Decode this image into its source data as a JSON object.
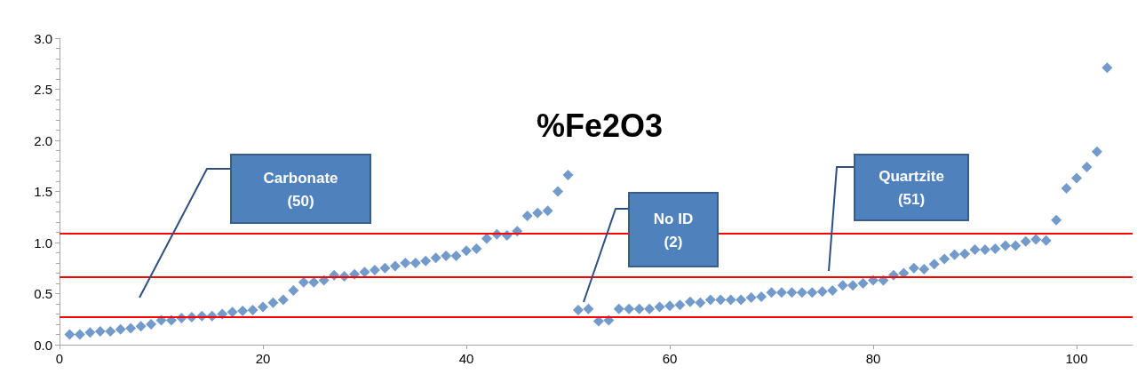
{
  "chart_data": {
    "type": "scatter",
    "title": "%Fe2O3",
    "x": [
      1,
      2,
      3,
      4,
      5,
      6,
      7,
      8,
      9,
      10,
      11,
      12,
      13,
      14,
      15,
      16,
      17,
      18,
      19,
      20,
      21,
      22,
      23,
      24,
      25,
      26,
      27,
      28,
      29,
      30,
      31,
      32,
      33,
      34,
      35,
      36,
      37,
      38,
      39,
      40,
      41,
      42,
      43,
      44,
      45,
      46,
      47,
      48,
      49,
      50,
      51,
      52,
      53,
      54,
      55,
      56,
      57,
      58,
      59,
      60,
      61,
      62,
      63,
      64,
      65,
      66,
      67,
      68,
      69,
      70,
      71,
      72,
      73,
      74,
      75,
      76,
      77,
      78,
      79,
      80,
      81,
      82,
      83,
      84,
      85,
      86,
      87,
      88,
      89,
      90,
      91,
      92,
      93,
      94,
      95,
      96,
      97,
      98,
      99,
      100,
      101,
      102,
      103
    ],
    "values": [
      0.1,
      0.1,
      0.12,
      0.13,
      0.13,
      0.15,
      0.16,
      0.18,
      0.2,
      0.24,
      0.24,
      0.26,
      0.27,
      0.28,
      0.28,
      0.3,
      0.32,
      0.33,
      0.34,
      0.37,
      0.41,
      0.44,
      0.53,
      0.61,
      0.61,
      0.63,
      0.68,
      0.67,
      0.69,
      0.71,
      0.73,
      0.75,
      0.77,
      0.8,
      0.8,
      0.82,
      0.85,
      0.87,
      0.87,
      0.92,
      0.94,
      1.04,
      1.08,
      1.07,
      1.11,
      1.26,
      1.29,
      1.31,
      1.5,
      1.66,
      0.34,
      0.35,
      0.23,
      0.24,
      0.35,
      0.35,
      0.35,
      0.35,
      0.37,
      0.38,
      0.39,
      0.42,
      0.41,
      0.44,
      0.44,
      0.44,
      0.44,
      0.46,
      0.47,
      0.51,
      0.51,
      0.51,
      0.51,
      0.51,
      0.52,
      0.53,
      0.58,
      0.58,
      0.6,
      0.63,
      0.63,
      0.68,
      0.7,
      0.75,
      0.74,
      0.79,
      0.84,
      0.88,
      0.89,
      0.93,
      0.93,
      0.94,
      0.97,
      0.97,
      1.01,
      1.03,
      1.02,
      1.22,
      1.53,
      1.63,
      1.74,
      1.89,
      2.71
    ],
    "color": "#4f81bd",
    "marker": "diamond",
    "xlim": [
      0,
      105.5
    ],
    "xticks": [
      0,
      20,
      40,
      60,
      80,
      100
    ],
    "ylim": [
      0,
      3
    ],
    "yticks": [
      {
        "value": 0,
        "label": "0.0"
      },
      {
        "value": 0.5,
        "label": "0.5"
      },
      {
        "value": 1,
        "label": "1.0"
      },
      {
        "value": 1.5,
        "label": "1.5"
      },
      {
        "value": 2,
        "label": "2.0"
      },
      {
        "value": 2.5,
        "label": "2.5"
      },
      {
        "value": 3,
        "label": "3.0"
      }
    ],
    "grid": false,
    "ref_lines": [
      {
        "axis": "y",
        "value": 0.27,
        "color": "#ff0000"
      },
      {
        "axis": "y",
        "value": 0.66,
        "color": "#ff0000"
      },
      {
        "axis": "y",
        "value": 1.09,
        "color": "#ff0000"
      }
    ],
    "annotations": [
      "Carbonate\n(50)",
      "No ID\n(2)",
      "Quartzite\n(51)"
    ]
  }
}
